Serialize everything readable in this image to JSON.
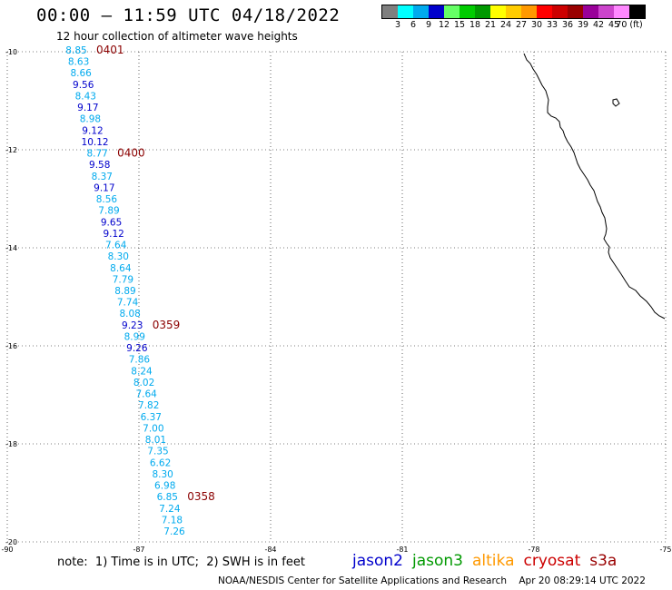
{
  "header": {
    "title": "00:00 — 11:59 UTC 04/18/2022",
    "subtitle": "12 hour collection of altimeter wave heights"
  },
  "legend": {
    "colors": [
      "#7f7f7f",
      "#00ffff",
      "#00aaee",
      "#0000cc",
      "#66ff66",
      "#00cc00",
      "#009900",
      "#ffff00",
      "#ffcc00",
      "#ff9900",
      "#ff0000",
      "#cc0000",
      "#990000",
      "#990099",
      "#cc44cc",
      "#ff88ff",
      "#000000"
    ],
    "labels": [
      "3",
      "6",
      "9",
      "12",
      "15",
      "18",
      "21",
      "24",
      "27",
      "30",
      "33",
      "36",
      "39",
      "42",
      "45",
      "70 (ft)"
    ]
  },
  "axes": {
    "lat_labels": [
      "-10",
      "-12",
      "-14",
      "-16",
      "-18",
      "-20"
    ],
    "lon_labels": [
      "-90",
      "-87",
      "-84",
      "-81",
      "-78",
      "-75"
    ]
  },
  "track": {
    "time_labels": [
      "0401",
      "0400",
      "0359",
      "0358"
    ],
    "values": [
      "8.85",
      "8.63",
      "8.66",
      "9.56",
      "8.43",
      "9.17",
      "8.98",
      "9.12",
      "10.12",
      "8.77",
      "9.58",
      "8.37",
      "9.17",
      "8.56",
      "7.89",
      "9.65",
      "9.12",
      "7.64",
      "8.30",
      "8.64",
      "7.79",
      "8.89",
      "7.74",
      "8.08",
      "9.23",
      "8.99",
      "9.26",
      "7.86",
      "8.24",
      "8.02",
      "7.64",
      "7.82",
      "6.37",
      "7.00",
      "8.01",
      "7.35",
      "6.62",
      "8.30",
      "6.98",
      "6.85",
      "7.24",
      "7.18",
      "7.26"
    ],
    "colors": [
      "#00aaee",
      "#00aaee",
      "#00aaee",
      "#0000cc",
      "#00aaee",
      "#0000cc",
      "#00aaee",
      "#0000cc",
      "#0000cc",
      "#00aaee",
      "#0000cc",
      "#00aaee",
      "#0000cc",
      "#00aaee",
      "#00aaee",
      "#0000cc",
      "#0000cc",
      "#00aaee",
      "#00aaee",
      "#00aaee",
      "#00aaee",
      "#00aaee",
      "#00aaee",
      "#00aaee",
      "#0000cc",
      "#00aaee",
      "#0000cc",
      "#00aaee",
      "#00aaee",
      "#00aaee",
      "#00aaee",
      "#00aaee",
      "#00aaee",
      "#00aaee",
      "#00aaee",
      "#00aaee",
      "#00aaee",
      "#00aaee",
      "#00aaee",
      "#00aaee",
      "#00aaee",
      "#00aaee",
      "#00aaee"
    ]
  },
  "footer": {
    "note": "note:  1) Time is in UTC;  2) SWH is in feet",
    "satellites": [
      {
        "name": "jason2",
        "color": "#0000cc"
      },
      {
        "name": "jason3",
        "color": "#009900"
      },
      {
        "name": "altika",
        "color": "#ff9900"
      },
      {
        "name": "cryosat",
        "color": "#cc0000"
      },
      {
        "name": "s3a",
        "color": "#990000"
      }
    ],
    "credit": "NOAA/NESDIS Center for Satellite Applications and Research    Apr 20 08:29:14 UTC 2022"
  }
}
